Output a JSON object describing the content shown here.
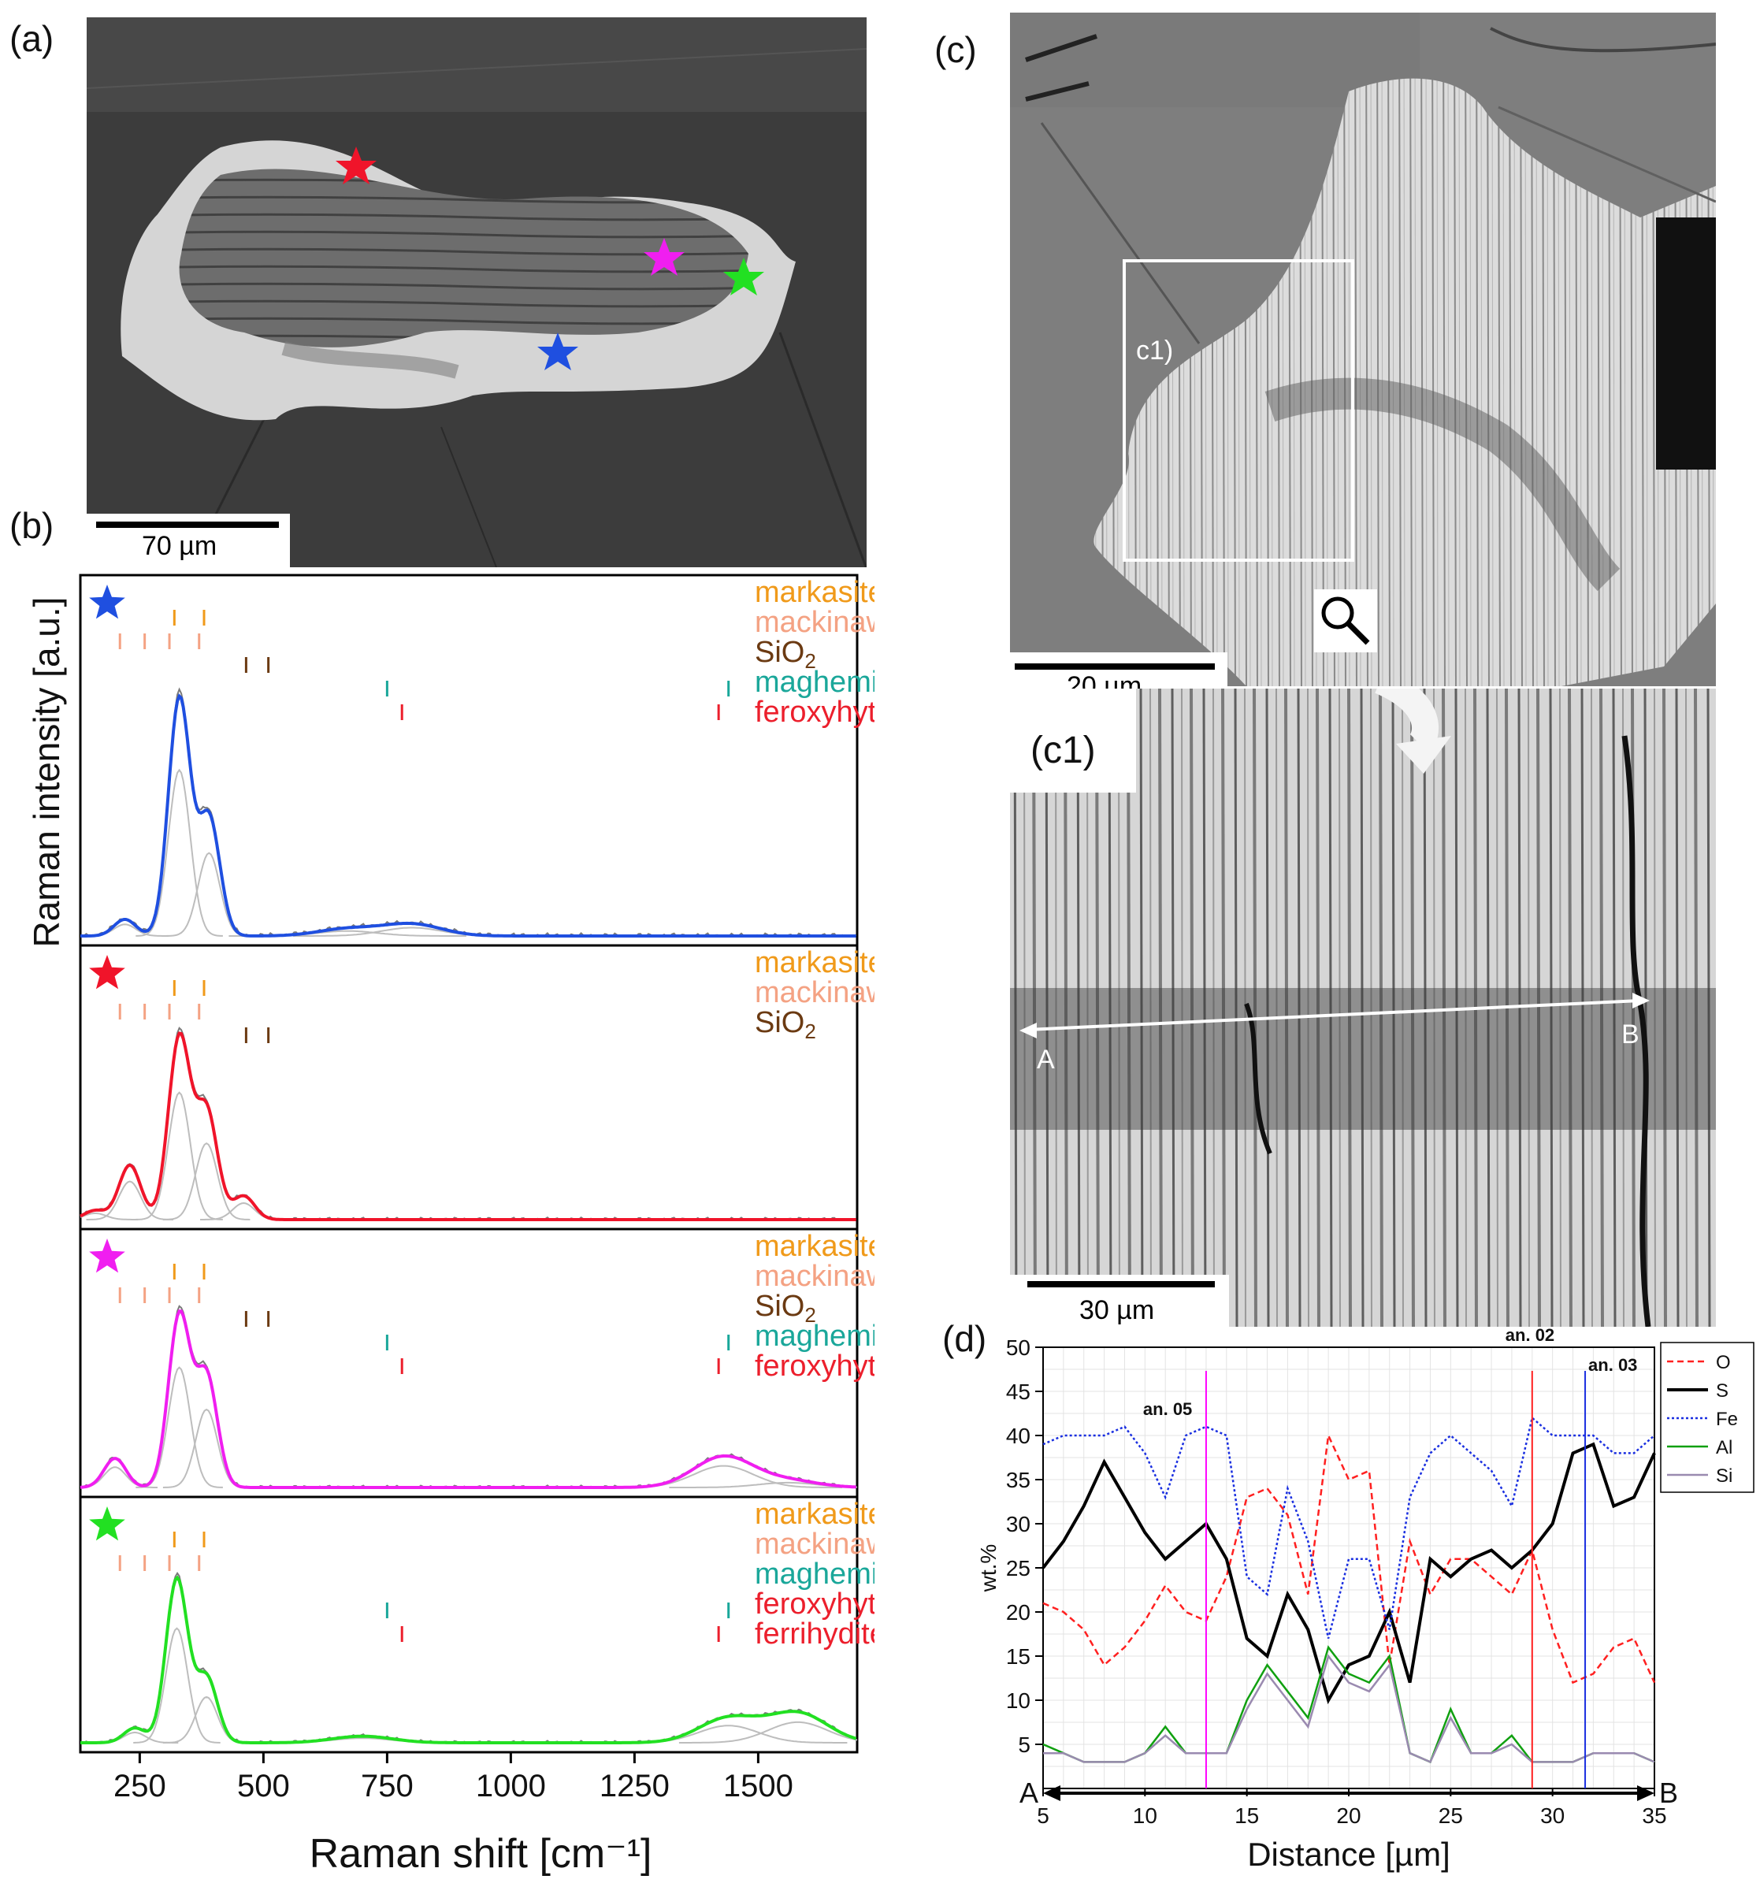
{
  "panels": {
    "a": "(a)",
    "b": "(b)",
    "c": "(c)",
    "c1_box": "c1)",
    "c1": "(c1)",
    "d": "(d)"
  },
  "scale_bars": {
    "a": "70 µm",
    "c": "20 µm",
    "c1": "30 µm"
  },
  "profile_endpoints": {
    "start": "A",
    "end": "B"
  },
  "star_colors": {
    "blue": "#1f4fe0",
    "red": "#f0142a",
    "magenta": "#f01ef0",
    "green": "#22e022"
  },
  "mineral_colors": {
    "markasite": "#f09a1a",
    "mackinawite": "#f4a283",
    "SiO2": "#6b3a12",
    "maghemite": "#1aa79a",
    "feroxyhyte": "#ec1f2c"
  },
  "raman": {
    "ylabel": "Raman intensity [a.u.]",
    "xlabel": "Raman shift [cm⁻¹]",
    "xticks": [
      "250",
      "500",
      "750",
      "1000",
      "1250",
      "1500"
    ],
    "spectra": [
      {
        "star": "blue",
        "labels": [
          "markasite",
          "mackinawite",
          "SiO2",
          "maghemite",
          "feroxyhyte"
        ]
      },
      {
        "star": "red",
        "labels": [
          "markasite",
          "mackinawite",
          "SiO2"
        ]
      },
      {
        "star": "magenta",
        "labels": [
          "markasite",
          "mackinawite",
          "SiO2",
          "maghemite",
          "feroxyhyte"
        ]
      },
      {
        "star": "green",
        "labels": [
          "markasite",
          "mackinawite",
          "maghemite",
          "feroxyhyte/",
          "ferrihydite"
        ]
      }
    ]
  },
  "chart_data": [
    {
      "type": "line",
      "panel": "b",
      "xlabel": "Raman shift [cm⁻¹]",
      "ylabel": "Raman intensity [a.u.]",
      "xlim": [
        130,
        1700
      ],
      "series": [
        {
          "star": "blue",
          "peaks": [
            [
              220,
              0.07
            ],
            [
              330,
              1.0
            ],
            [
              390,
              0.5
            ],
            [
              670,
              0.03
            ],
            [
              800,
              0.05
            ]
          ]
        },
        {
          "star": "red",
          "peaks": [
            [
              160,
              0.05
            ],
            [
              230,
              0.3
            ],
            [
              330,
              1.0
            ],
            [
              385,
              0.6
            ],
            [
              460,
              0.13
            ]
          ]
        },
        {
          "star": "magenta",
          "peaks": [
            [
              200,
              0.17
            ],
            [
              330,
              1.0
            ],
            [
              385,
              0.65
            ],
            [
              1430,
              0.18
            ],
            [
              1560,
              0.04
            ]
          ]
        },
        {
          "star": "green",
          "peaks": [
            [
              240,
              0.09
            ],
            [
              325,
              1.0
            ],
            [
              385,
              0.4
            ],
            [
              700,
              0.04
            ],
            [
              1440,
              0.15
            ],
            [
              1580,
              0.18
            ]
          ]
        }
      ],
      "reference_lines_cm-1": {
        "markasite": [
          320,
          380
        ],
        "mackinawite": [
          210,
          260,
          310,
          370
        ],
        "SiO2": [
          465,
          510
        ],
        "maghemite": [
          750,
          1440
        ],
        "feroxyhyte": [
          780,
          1420
        ]
      }
    },
    {
      "type": "line",
      "panel": "d",
      "xlabel": "Distance [µm]",
      "ylabel": "wt.%",
      "xlim": [
        5,
        35
      ],
      "ylim": [
        0,
        50
      ],
      "xticks": [
        5,
        10,
        15,
        20,
        25,
        30,
        35
      ],
      "yticks": [
        5,
        10,
        15,
        20,
        25,
        30,
        35,
        40,
        45,
        50
      ],
      "legend": [
        "O",
        "S",
        "Fe",
        "Al",
        "Si"
      ],
      "legend_position": "right",
      "x": [
        5,
        6,
        7,
        8,
        9,
        10,
        11,
        12,
        13,
        14,
        15,
        16,
        17,
        18,
        19,
        20,
        21,
        22,
        23,
        24,
        25,
        26,
        27,
        28,
        29,
        30,
        31,
        32,
        33,
        34,
        35
      ],
      "series": [
        {
          "name": "O",
          "values": [
            21,
            20,
            18,
            14,
            16,
            19,
            23,
            20,
            19,
            24,
            33,
            34,
            31,
            22,
            40,
            35,
            36,
            14,
            28,
            22,
            26,
            26,
            24,
            22,
            27,
            18,
            12,
            13,
            16,
            17,
            12
          ]
        },
        {
          "name": "S",
          "values": [
            25,
            28,
            32,
            37,
            33,
            29,
            26,
            28,
            30,
            26,
            17,
            15,
            22,
            18,
            10,
            14,
            15,
            20,
            12,
            26,
            24,
            26,
            27,
            25,
            27,
            30,
            38,
            39,
            32,
            33,
            38
          ]
        },
        {
          "name": "Fe",
          "values": [
            39,
            40,
            40,
            40,
            41,
            38,
            33,
            40,
            41,
            40,
            24,
            22,
            34,
            28,
            17,
            26,
            26,
            18,
            33,
            38,
            40,
            38,
            36,
            32,
            42,
            40,
            40,
            40,
            38,
            38,
            40
          ]
        },
        {
          "name": "Al",
          "values": [
            5,
            4,
            3,
            3,
            3,
            4,
            7,
            4,
            4,
            4,
            10,
            14,
            11,
            8,
            16,
            13,
            12,
            15,
            4,
            3,
            9,
            4,
            4,
            6,
            3,
            3,
            3,
            4,
            4,
            4,
            3
          ]
        },
        {
          "name": "Si",
          "values": [
            4,
            4,
            3,
            3,
            3,
            4,
            6,
            4,
            4,
            4,
            9,
            13,
            10,
            7,
            15,
            12,
            11,
            14,
            4,
            3,
            8,
            4,
            4,
            5,
            3,
            3,
            3,
            4,
            4,
            4,
            3
          ]
        }
      ],
      "markers": [
        {
          "label": "an. 05",
          "x": 13.0,
          "color": "#ff00ff"
        },
        {
          "label": "an. 02",
          "x": 29.0,
          "color": "#ff2020"
        },
        {
          "label": "an. 03",
          "x": 31.6,
          "color": "#1a2fe0"
        }
      ],
      "series_styles": {
        "O": {
          "color": "#ff2020",
          "dash": "8,5"
        },
        "S": {
          "color": "#000000",
          "dash": ""
        },
        "Fe": {
          "color": "#1a2fe0",
          "dash": "3,3"
        },
        "Al": {
          "color": "#10a010",
          "dash": ""
        },
        "Si": {
          "color": "#9a8ab0",
          "dash": ""
        }
      }
    }
  ]
}
